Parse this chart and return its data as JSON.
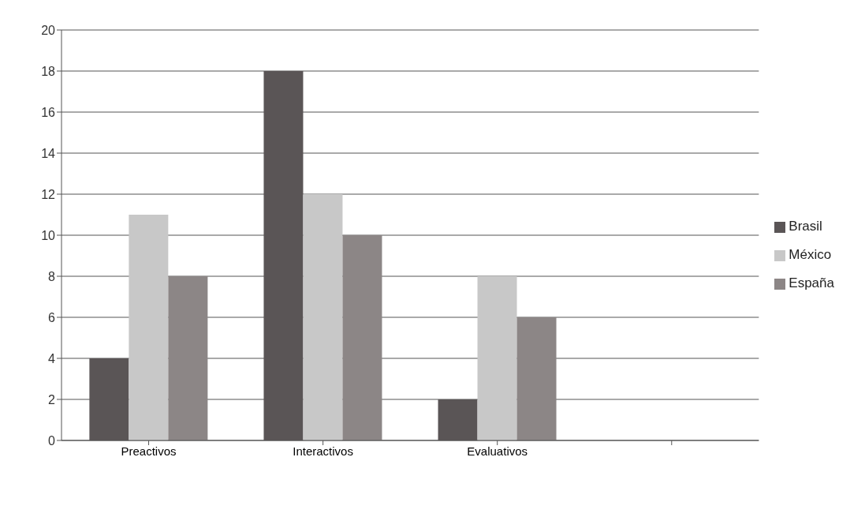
{
  "chart_data": {
    "type": "bar",
    "categories": [
      "Preactivos",
      "Interactivos",
      "Evaluativos",
      null
    ],
    "series": [
      {
        "name": "Brasil",
        "color": "#5a5556",
        "values": [
          4,
          18,
          2,
          null
        ]
      },
      {
        "name": "México",
        "color": "#c8c8c8",
        "values": [
          11,
          12,
          8,
          null
        ]
      },
      {
        "name": "España",
        "color": "#8c8686",
        "values": [
          8,
          10,
          6,
          null
        ]
      }
    ],
    "ylim": [
      0,
      20
    ],
    "yticks": [
      0,
      2,
      4,
      6,
      8,
      10,
      12,
      14,
      16,
      18,
      20
    ],
    "grid": "y",
    "legend": "right"
  }
}
